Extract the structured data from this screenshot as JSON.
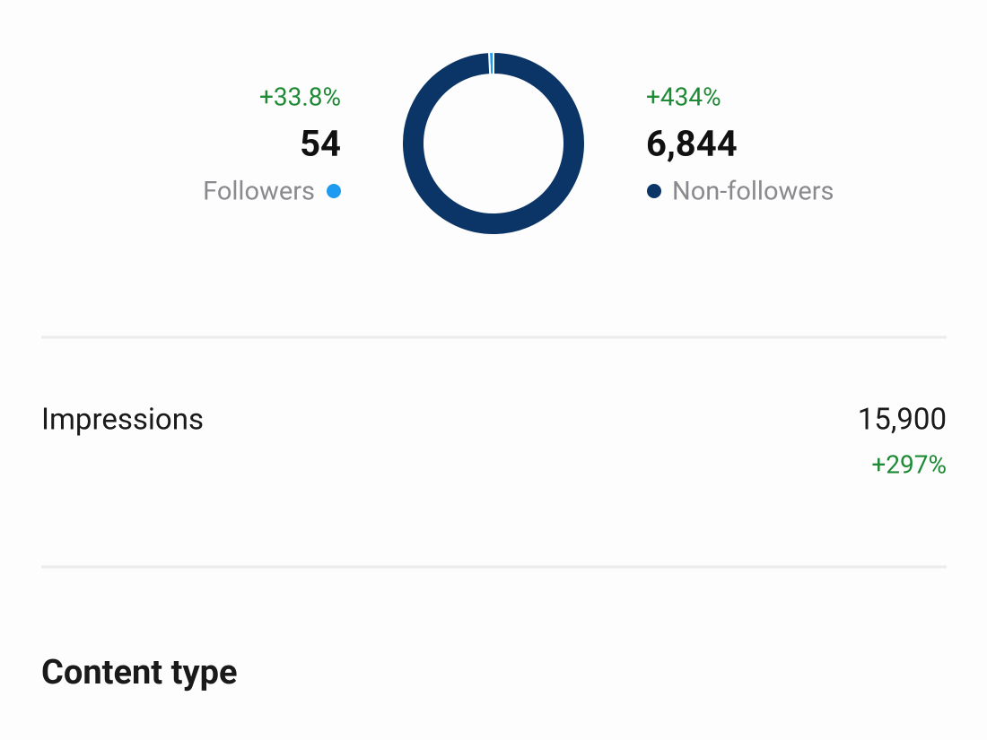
{
  "chart_data": {
    "type": "pie",
    "categories": [
      "Followers",
      "Non-followers"
    ],
    "values": [
      54,
      6844
    ],
    "value_labels": [
      "54",
      "6,844"
    ],
    "changes": [
      "+33.8%",
      "+434%"
    ],
    "colors": [
      "#1d9bf0",
      "#0b3566"
    ]
  },
  "impressions": {
    "label": "Impressions",
    "value": "15,900",
    "change": "+297%"
  },
  "section_title": "Content type"
}
